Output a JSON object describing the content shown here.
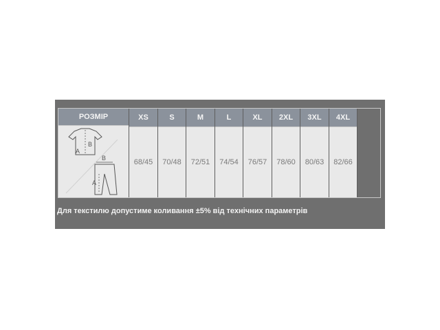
{
  "table": {
    "header_label": "РОЗМІР",
    "sizes": [
      "XS",
      "S",
      "M",
      "L",
      "XL",
      "2XL",
      "3XL",
      "4XL"
    ],
    "values": [
      "68/45",
      "70/48",
      "72/51",
      "74/54",
      "76/57",
      "78/60",
      "80/63",
      "82/66"
    ],
    "diagram_labels": {
      "shirt_a": "A",
      "shirt_b": "B",
      "pants_a": "A",
      "pants_b": "B"
    }
  },
  "note": "Для текстилю допустиме коливання ±5% від технічних параметрів",
  "colors": {
    "frame": "#6f6f6f",
    "header": "#8b929c",
    "cell": "#e9e9e9"
  }
}
